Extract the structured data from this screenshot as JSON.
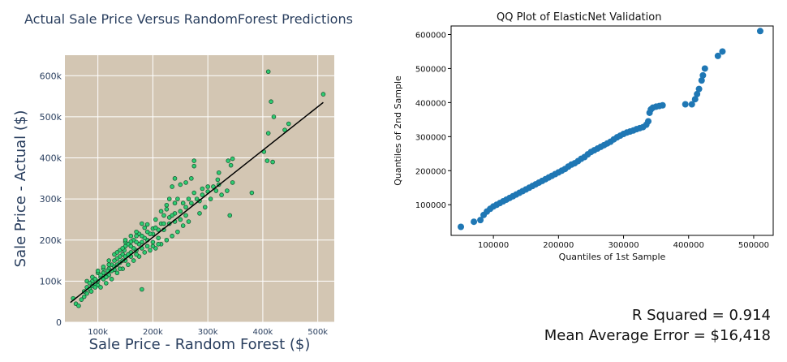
{
  "chart_data": [
    {
      "type": "scatter",
      "title": "Actual Sale Price Versus RandomForest Predictions",
      "xlabel": "Sale Price - Random Forest ($)",
      "ylabel": "Sale Price - Actual ($)",
      "xlim": [
        40000,
        530000
      ],
      "ylim": [
        0,
        650000
      ],
      "xticks": [
        100000,
        200000,
        300000,
        400000,
        500000
      ],
      "xtick_labels": [
        "100k",
        "200k",
        "300k",
        "400k",
        "500k"
      ],
      "yticks": [
        0,
        100000,
        200000,
        300000,
        400000,
        500000,
        600000
      ],
      "ytick_labels": [
        "0",
        "100k",
        "200k",
        "300k",
        "400k",
        "500k",
        "600k"
      ],
      "background": "#d3c6b3",
      "marker_color": "#2ecc71",
      "marker_edge": "#1a5a35",
      "fit_line": {
        "x": [
          50000,
          510000
        ],
        "y": [
          48000,
          535000
        ],
        "color": "#000000"
      },
      "grid": true,
      "points": [
        [
          410000,
          610000
        ],
        [
          510000,
          555000
        ],
        [
          415000,
          537000
        ],
        [
          420000,
          500000
        ],
        [
          447000,
          483000
        ],
        [
          440000,
          468000
        ],
        [
          410000,
          460000
        ],
        [
          402000,
          415000
        ],
        [
          408000,
          393000
        ],
        [
          418000,
          390000
        ],
        [
          380000,
          315000
        ],
        [
          345000,
          398000
        ],
        [
          337000,
          393000
        ],
        [
          342000,
          382000
        ],
        [
          320000,
          364000
        ],
        [
          318000,
          347000
        ],
        [
          345000,
          340000
        ],
        [
          335000,
          320000
        ],
        [
          340000,
          260000
        ],
        [
          300000,
          330000
        ],
        [
          290000,
          325000
        ],
        [
          275000,
          393000
        ],
        [
          275000,
          380000
        ],
        [
          270000,
          350000
        ],
        [
          260000,
          340000
        ],
        [
          250000,
          335000
        ],
        [
          240000,
          350000
        ],
        [
          235000,
          330000
        ],
        [
          245000,
          300000
        ],
        [
          240000,
          290000
        ],
        [
          230000,
          300000
        ],
        [
          225000,
          285000
        ],
        [
          220000,
          260000
        ],
        [
          215000,
          240000
        ],
        [
          205000,
          250000
        ],
        [
          200000,
          228000
        ],
        [
          190000,
          238000
        ],
        [
          185000,
          230000
        ],
        [
          180000,
          240000
        ],
        [
          175000,
          215000
        ],
        [
          170000,
          210000
        ],
        [
          165000,
          200000
        ],
        [
          160000,
          196000
        ],
        [
          155000,
          190000
        ],
        [
          150000,
          185000
        ],
        [
          148000,
          175000
        ],
        [
          145000,
          165000
        ],
        [
          140000,
          160000
        ],
        [
          135000,
          155000
        ],
        [
          130000,
          150000
        ],
        [
          125000,
          140000
        ],
        [
          120000,
          130000
        ],
        [
          118000,
          125000
        ],
        [
          110000,
          120000
        ],
        [
          105000,
          110000
        ],
        [
          100000,
          100000
        ],
        [
          95000,
          92000
        ],
        [
          90000,
          88000
        ],
        [
          85000,
          80000
        ],
        [
          80000,
          70000
        ],
        [
          75000,
          62000
        ],
        [
          70000,
          55000
        ],
        [
          60000,
          45000
        ],
        [
          55000,
          58000
        ],
        [
          65000,
          40000
        ],
        [
          80000,
          100000
        ],
        [
          90000,
          110000
        ],
        [
          100000,
          120000
        ],
        [
          110000,
          130000
        ],
        [
          120000,
          140000
        ],
        [
          130000,
          165000
        ],
        [
          140000,
          175000
        ],
        [
          150000,
          195000
        ],
        [
          160000,
          210000
        ],
        [
          170000,
          220000
        ],
        [
          180000,
          195000
        ],
        [
          190000,
          200000
        ],
        [
          200000,
          215000
        ],
        [
          210000,
          225000
        ],
        [
          220000,
          240000
        ],
        [
          230000,
          255000
        ],
        [
          240000,
          265000
        ],
        [
          250000,
          270000
        ],
        [
          260000,
          280000
        ],
        [
          270000,
          290000
        ],
        [
          280000,
          300000
        ],
        [
          290000,
          310000
        ],
        [
          300000,
          318000
        ],
        [
          310000,
          330000
        ],
        [
          320000,
          335000
        ],
        [
          260000,
          260000
        ],
        [
          250000,
          250000
        ],
        [
          240000,
          245000
        ],
        [
          230000,
          240000
        ],
        [
          220000,
          225000
        ],
        [
          210000,
          205000
        ],
        [
          200000,
          195000
        ],
        [
          190000,
          185000
        ],
        [
          180000,
          180000
        ],
        [
          170000,
          175000
        ],
        [
          160000,
          170000
        ],
        [
          150000,
          160000
        ],
        [
          140000,
          145000
        ],
        [
          130000,
          135000
        ],
        [
          120000,
          115000
        ],
        [
          110000,
          105000
        ],
        [
          100000,
          90000
        ],
        [
          95000,
          85000
        ],
        [
          88000,
          75000
        ],
        [
          105000,
          85000
        ],
        [
          115000,
          95000
        ],
        [
          125000,
          105000
        ],
        [
          135000,
          120000
        ],
        [
          145000,
          130000
        ],
        [
          155000,
          140000
        ],
        [
          165000,
          150000
        ],
        [
          175000,
          160000
        ],
        [
          185000,
          170000
        ],
        [
          195000,
          175000
        ],
        [
          205000,
          180000
        ],
        [
          215000,
          190000
        ],
        [
          225000,
          200000
        ],
        [
          235000,
          210000
        ],
        [
          245000,
          220000
        ],
        [
          255000,
          235000
        ],
        [
          265000,
          245000
        ],
        [
          285000,
          265000
        ],
        [
          295000,
          280000
        ],
        [
          180000,
          80000
        ],
        [
          200000,
          185000
        ],
        [
          210000,
          190000
        ],
        [
          150000,
          150000
        ],
        [
          140000,
          130000
        ],
        [
          130000,
          128000
        ],
        [
          160000,
          160000
        ],
        [
          170000,
          165000
        ],
        [
          175000,
          190000
        ],
        [
          185000,
          205000
        ],
        [
          195000,
          215000
        ],
        [
          205000,
          230000
        ],
        [
          215000,
          270000
        ],
        [
          225000,
          275000
        ],
        [
          235000,
          260000
        ],
        [
          255000,
          290000
        ],
        [
          265000,
          300000
        ],
        [
          275000,
          315000
        ],
        [
          285000,
          295000
        ],
        [
          305000,
          300000
        ],
        [
          315000,
          320000
        ],
        [
          325000,
          310000
        ],
        [
          120000,
          150000
        ],
        [
          110000,
          135000
        ],
        [
          100000,
          125000
        ],
        [
          90000,
          100000
        ],
        [
          85000,
          95000
        ],
        [
          80000,
          85000
        ],
        [
          75000,
          75000
        ],
        [
          95000,
          105000
        ],
        [
          105000,
          115000
        ],
        [
          115000,
          110000
        ],
        [
          125000,
          125000
        ],
        [
          135000,
          140000
        ],
        [
          145000,
          150000
        ],
        [
          155000,
          165000
        ],
        [
          165000,
          180000
        ],
        [
          145000,
          180000
        ],
        [
          135000,
          170000
        ],
        [
          150000,
          200000
        ],
        [
          160000,
          185000
        ],
        [
          170000,
          195000
        ],
        [
          180000,
          210000
        ],
        [
          190000,
          220000
        ]
      ]
    },
    {
      "type": "scatter",
      "title": "QQ Plot of ElasticNet Validation",
      "xlabel": "Quantiles of 1st Sample",
      "ylabel": "Quantiles of 2nd Sample",
      "xlim": [
        35000,
        530000
      ],
      "ylim": [
        10000,
        625000
      ],
      "xticks": [
        100000,
        200000,
        300000,
        400000,
        500000
      ],
      "xtick_labels": [
        "100000",
        "200000",
        "300000",
        "400000",
        "500000"
      ],
      "yticks": [
        100000,
        200000,
        300000,
        400000,
        500000,
        600000
      ],
      "ytick_labels": [
        "100000",
        "200000",
        "300000",
        "400000",
        "500000",
        "600000"
      ],
      "marker_color": "#1f77b4",
      "grid": false,
      "points": [
        [
          50000,
          35000
        ],
        [
          70000,
          50000
        ],
        [
          80000,
          55000
        ],
        [
          85000,
          70000
        ],
        [
          90000,
          80000
        ],
        [
          95000,
          88000
        ],
        [
          100000,
          95000
        ],
        [
          105000,
          100000
        ],
        [
          110000,
          105000
        ],
        [
          115000,
          110000
        ],
        [
          120000,
          115000
        ],
        [
          125000,
          120000
        ],
        [
          130000,
          125000
        ],
        [
          135000,
          130000
        ],
        [
          140000,
          135000
        ],
        [
          145000,
          140000
        ],
        [
          150000,
          145000
        ],
        [
          155000,
          150000
        ],
        [
          160000,
          155000
        ],
        [
          165000,
          160000
        ],
        [
          170000,
          165000
        ],
        [
          175000,
          170000
        ],
        [
          180000,
          175000
        ],
        [
          185000,
          180000
        ],
        [
          190000,
          185000
        ],
        [
          195000,
          190000
        ],
        [
          200000,
          195000
        ],
        [
          205000,
          200000
        ],
        [
          210000,
          205000
        ],
        [
          215000,
          212000
        ],
        [
          220000,
          218000
        ],
        [
          225000,
          222000
        ],
        [
          230000,
          228000
        ],
        [
          235000,
          235000
        ],
        [
          240000,
          240000
        ],
        [
          245000,
          248000
        ],
        [
          250000,
          255000
        ],
        [
          255000,
          260000
        ],
        [
          260000,
          265000
        ],
        [
          265000,
          270000
        ],
        [
          270000,
          275000
        ],
        [
          275000,
          280000
        ],
        [
          280000,
          285000
        ],
        [
          285000,
          292000
        ],
        [
          290000,
          298000
        ],
        [
          295000,
          303000
        ],
        [
          300000,
          308000
        ],
        [
          305000,
          312000
        ],
        [
          310000,
          315000
        ],
        [
          315000,
          318000
        ],
        [
          320000,
          322000
        ],
        [
          325000,
          325000
        ],
        [
          330000,
          328000
        ],
        [
          335000,
          335000
        ],
        [
          338000,
          345000
        ],
        [
          340000,
          370000
        ],
        [
          342000,
          380000
        ],
        [
          345000,
          385000
        ],
        [
          350000,
          388000
        ],
        [
          355000,
          390000
        ],
        [
          360000,
          392000
        ],
        [
          395000,
          395000
        ],
        [
          405000,
          395000
        ],
        [
          410000,
          410000
        ],
        [
          413000,
          425000
        ],
        [
          416000,
          440000
        ],
        [
          420000,
          465000
        ],
        [
          422000,
          480000
        ],
        [
          425000,
          500000
        ],
        [
          445000,
          537000
        ],
        [
          452000,
          550000
        ],
        [
          510000,
          610000
        ]
      ]
    }
  ],
  "metrics": {
    "r_squared": "R Squared = 0.914",
    "mae": "Mean Average Error = $16,418"
  }
}
